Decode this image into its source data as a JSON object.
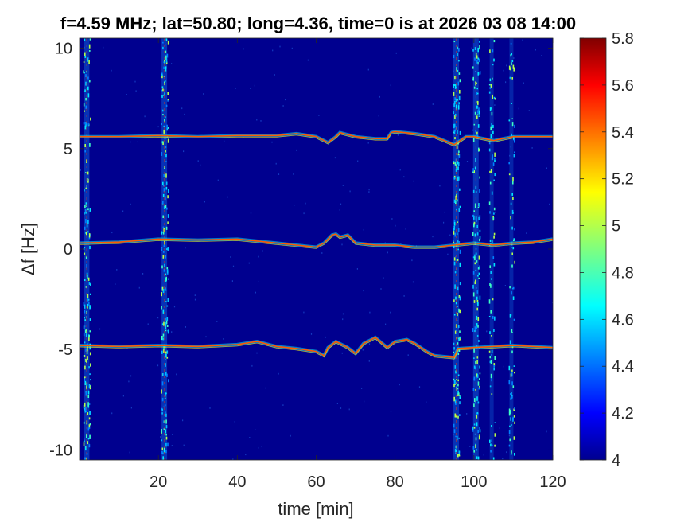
{
  "chart_data": {
    "type": "heatmap",
    "title": "f=4.59 MHz;  lat=50.80; long=4.36, time=0 is at 2026 03 08 14:00",
    "xlabel": "time [min]",
    "ylabel": "Δf [Hz]",
    "xlim": [
      0,
      120
    ],
    "ylim": [
      -10.5,
      10.5
    ],
    "x_ticks": [
      20,
      40,
      60,
      80,
      100,
      120
    ],
    "y_ticks": [
      10,
      5,
      0,
      -5,
      -10
    ],
    "colorbar": {
      "colormap": "jet",
      "range": [
        4,
        5.8
      ],
      "ticks": [
        4,
        4.2,
        4.4,
        4.6,
        4.8,
        5,
        5.2,
        5.4,
        5.6,
        5.8
      ]
    },
    "background_color": "#00008f",
    "grid": false,
    "vertical_bands": [
      {
        "x": 1.8,
        "intensity": "high"
      },
      {
        "x": 21.5,
        "intensity": "high"
      },
      {
        "x": 95.5,
        "intensity": "high"
      },
      {
        "x": 100.5,
        "intensity": "high"
      },
      {
        "x": 104.5,
        "intensity": "medium"
      },
      {
        "x": 109.5,
        "intensity": "medium"
      }
    ],
    "series": [
      {
        "x": [
          0,
          10,
          20,
          30,
          40,
          50,
          55,
          60,
          63,
          65,
          66,
          70,
          75,
          78,
          79,
          80,
          85,
          90,
          95,
          98,
          100,
          105,
          110,
          115,
          120
        ],
        "y": [
          5.6,
          5.6,
          5.65,
          5.6,
          5.65,
          5.65,
          5.75,
          5.6,
          5.3,
          5.6,
          5.8,
          5.6,
          5.5,
          5.5,
          5.8,
          5.85,
          5.75,
          5.6,
          5.2,
          5.6,
          5.6,
          5.4,
          5.6,
          5.6,
          5.6
        ]
      },
      {
        "x": [
          0,
          10,
          20,
          30,
          40,
          50,
          55,
          60,
          62,
          64,
          65,
          66,
          68,
          70,
          75,
          80,
          85,
          90,
          95,
          100,
          105,
          110,
          115,
          120
        ],
        "y": [
          0.3,
          0.35,
          0.5,
          0.45,
          0.5,
          0.3,
          0.2,
          0.1,
          0.3,
          0.7,
          0.75,
          0.6,
          0.7,
          0.3,
          0.2,
          0.2,
          0.1,
          0.1,
          0.2,
          0.3,
          0.2,
          0.3,
          0.35,
          0.5
        ]
      },
      {
        "x": [
          0,
          10,
          20,
          30,
          40,
          45,
          50,
          55,
          60,
          62,
          63,
          65,
          68,
          70,
          72,
          75,
          78,
          80,
          83,
          85,
          88,
          90,
          95,
          96,
          100,
          105,
          110,
          115,
          120
        ],
        "y": [
          -4.8,
          -4.85,
          -4.8,
          -4.85,
          -4.75,
          -4.6,
          -4.85,
          -4.95,
          -5.1,
          -5.3,
          -4.9,
          -4.6,
          -4.9,
          -5.2,
          -4.7,
          -4.4,
          -4.9,
          -4.6,
          -4.5,
          -4.7,
          -5.1,
          -5.3,
          -5.4,
          -4.95,
          -4.9,
          -4.85,
          -4.8,
          -4.85,
          -4.9
        ]
      }
    ]
  }
}
